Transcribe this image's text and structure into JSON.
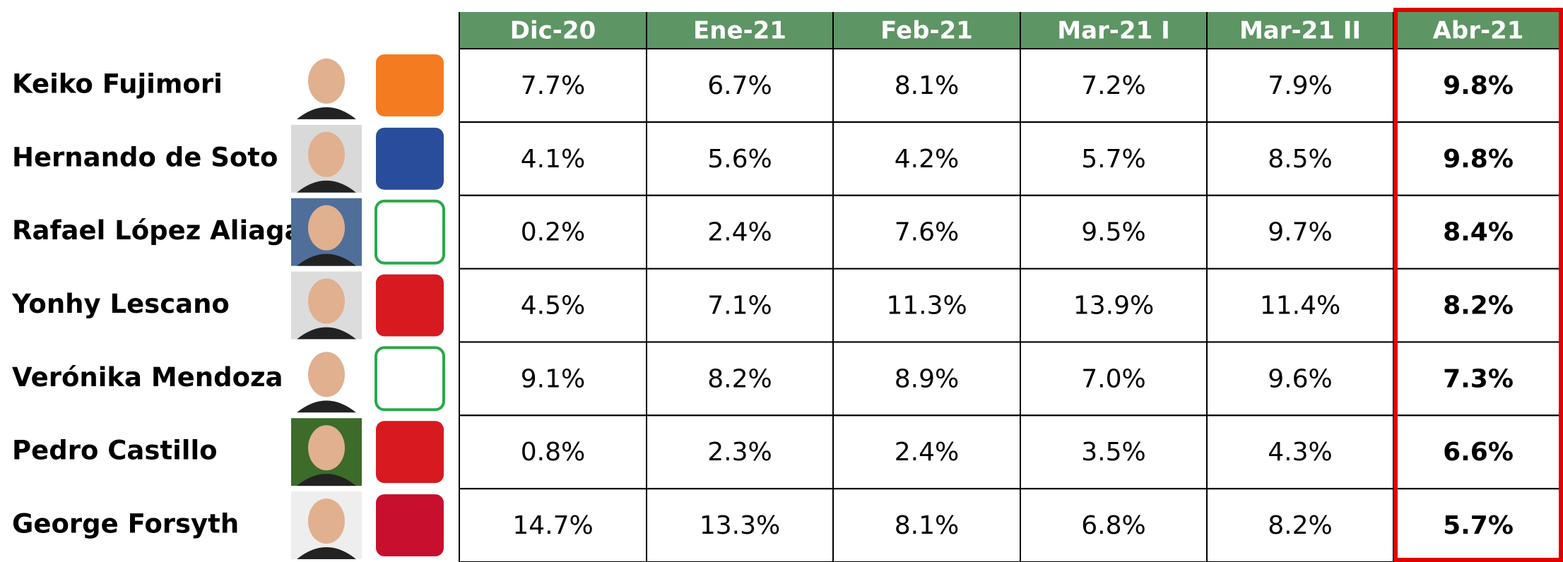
{
  "table": {
    "columns": [
      "Dic-20",
      "Ene-21",
      "Feb-21",
      "Mar-21 I",
      "Mar-21 II",
      "Abr-21"
    ],
    "rows": [
      {
        "name": "Keiko Fujimori",
        "values": [
          "7.7%",
          "6.7%",
          "8.1%",
          "7.2%",
          "7.9%",
          "9.8%"
        ]
      },
      {
        "name": "Hernando de Soto",
        "values": [
          "4.1%",
          "5.6%",
          "4.2%",
          "5.7%",
          "8.5%",
          "9.8%"
        ]
      },
      {
        "name": "Rafael López Aliaga",
        "values": [
          "0.2%",
          "2.4%",
          "7.6%",
          "9.5%",
          "9.7%",
          "8.4%"
        ]
      },
      {
        "name": "Yonhy Lescano",
        "values": [
          "4.5%",
          "7.1%",
          "11.3%",
          "13.9%",
          "11.4%",
          "8.2%"
        ]
      },
      {
        "name": "Verónika Mendoza",
        "values": [
          "9.1%",
          "8.2%",
          "8.9%",
          "7.0%",
          "9.6%",
          "7.3%"
        ]
      },
      {
        "name": "Pedro Castillo",
        "values": [
          "0.8%",
          "2.3%",
          "2.4%",
          "3.5%",
          "4.3%",
          "6.6%"
        ]
      },
      {
        "name": "George Forsyth",
        "values": [
          "14.7%",
          "13.3%",
          "8.1%",
          "6.8%",
          "8.2%",
          "5.7%"
        ]
      }
    ]
  }
}
